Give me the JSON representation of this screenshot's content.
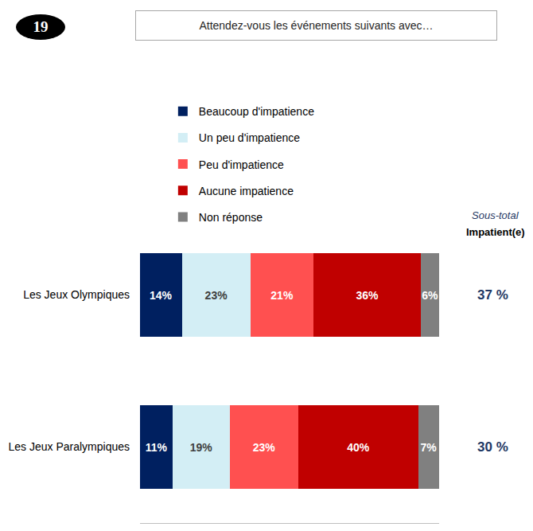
{
  "header": {
    "number": "19"
  },
  "chart_data": {
    "type": "bar",
    "title": "Attendez-vous les événements suivants avec…",
    "orientation": "horizontal",
    "stacked": true,
    "data_labels": true,
    "legend": "top",
    "tick_labels": "y",
    "categories": [
      "Les Jeux Olympiques",
      "Les Jeux Paralympiques"
    ],
    "series": [
      {
        "name": "Beaucoup d'impatience",
        "color": "#002060",
        "values": [
          14,
          11
        ],
        "value_labels": [
          "14%",
          "11%"
        ]
      },
      {
        "name": "Un peu d'impatience",
        "color": "#d3eef5",
        "values": [
          23,
          19
        ],
        "value_labels": [
          "23%",
          "19%"
        ]
      },
      {
        "name": "Peu d'impatience",
        "color": "#ff5050",
        "values": [
          21,
          23
        ],
        "value_labels": [
          "21%",
          "23%"
        ]
      },
      {
        "name": "Aucune impatience",
        "color": "#c00000",
        "values": [
          36,
          40
        ],
        "value_labels": [
          "36%",
          "40%"
        ]
      },
      {
        "name": "Non réponse",
        "color": "#808080",
        "values": [
          6,
          7
        ],
        "value_labels": [
          "6%",
          "7%"
        ]
      }
    ],
    "xlim": [
      0,
      100
    ],
    "xticks": [],
    "subtotal": {
      "title": "Sous-total",
      "label": "Impatient(e)",
      "values": [
        37,
        30
      ],
      "value_labels": [
        "37 %",
        "30 %"
      ]
    }
  }
}
